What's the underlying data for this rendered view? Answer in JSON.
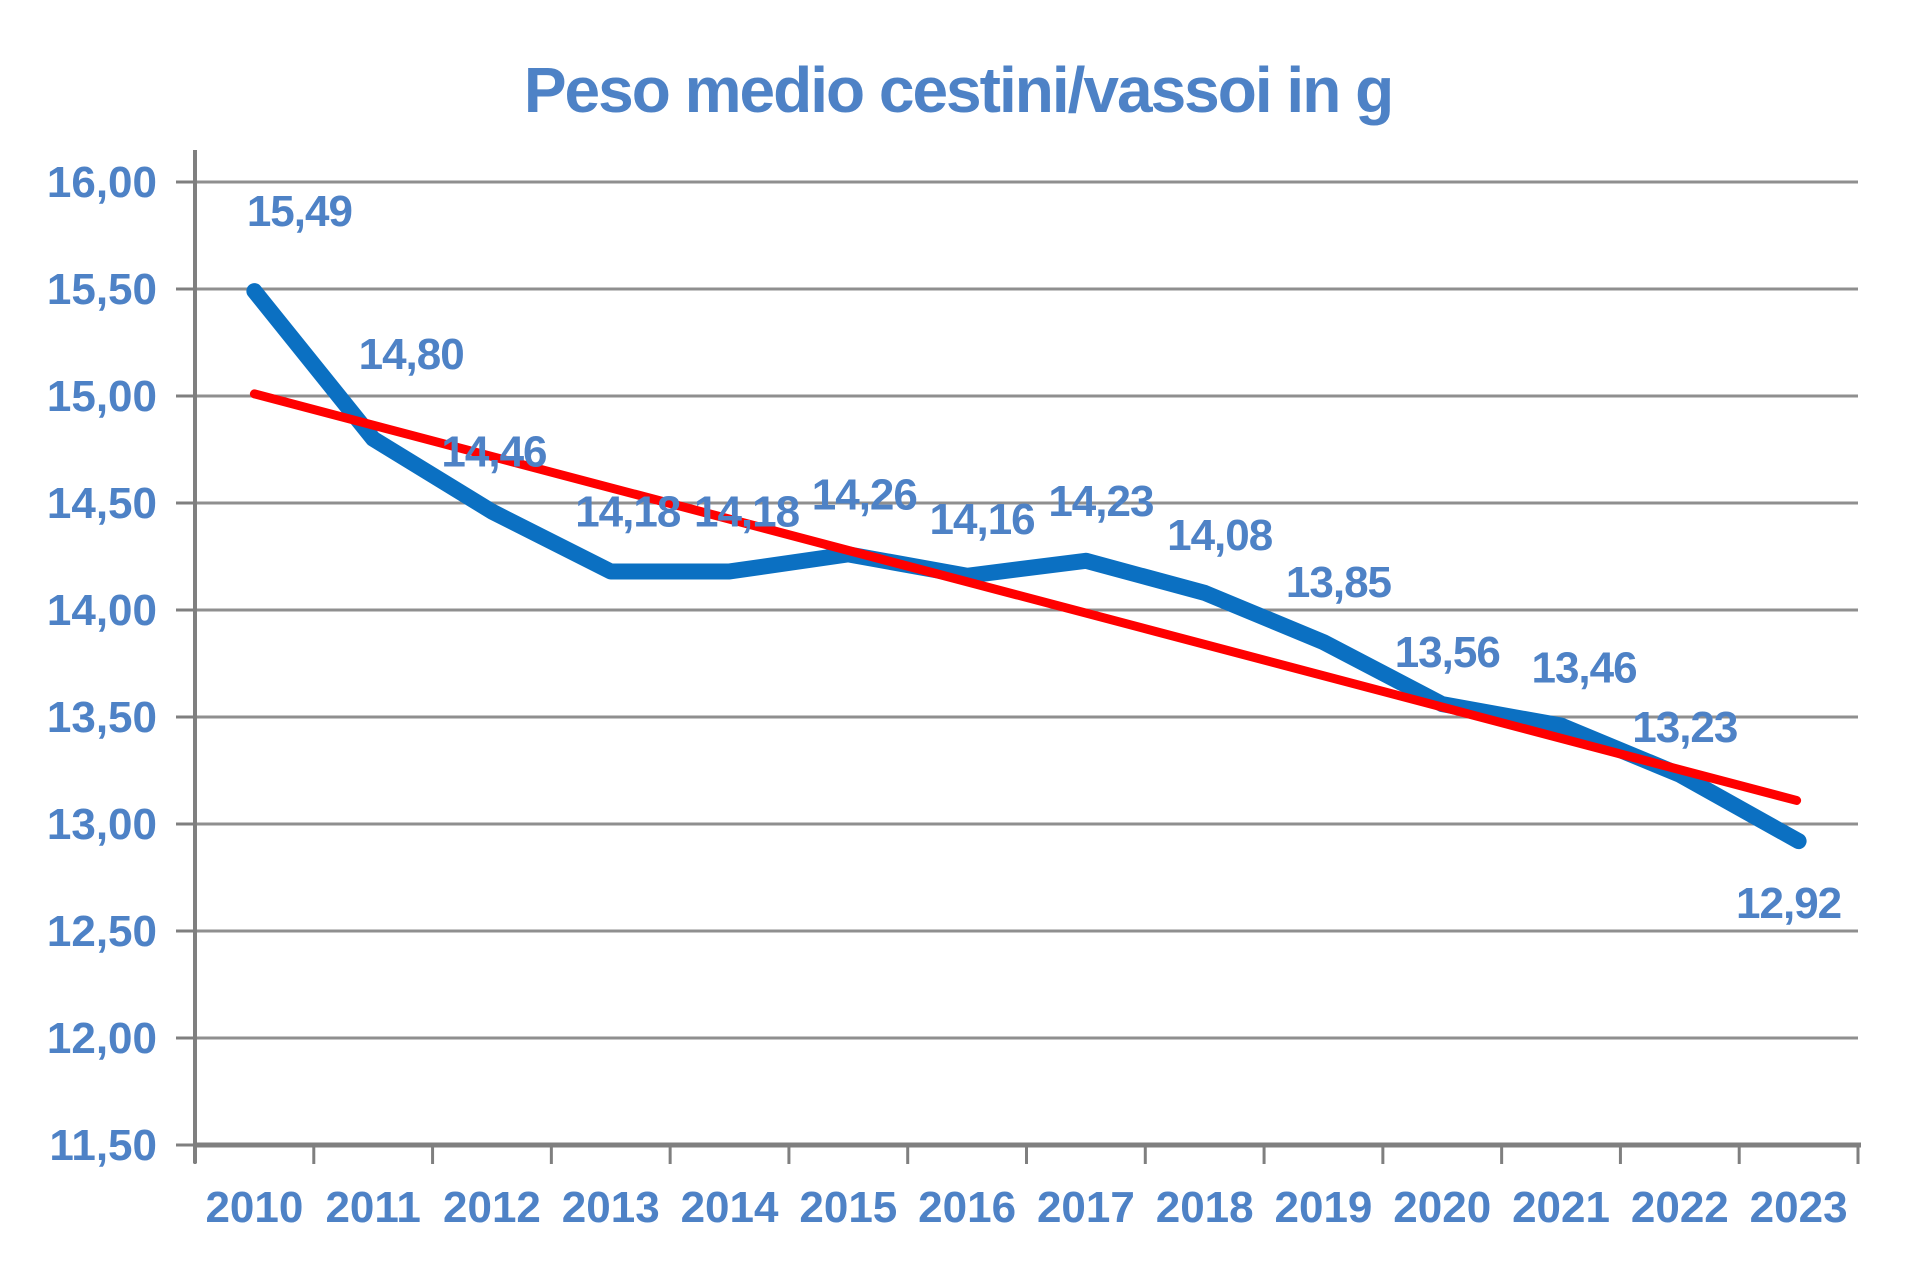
{
  "chart_data": {
    "type": "line",
    "title": "Peso medio cestini/vassoi in g",
    "categories": [
      "2010",
      "2011",
      "2012",
      "2013",
      "2014",
      "2015",
      "2016",
      "2017",
      "2018",
      "2019",
      "2020",
      "2021",
      "2022",
      "2023"
    ],
    "series": [
      {
        "name": "Peso medio cestini/vassoi in g",
        "values": [
          15.49,
          14.8,
          14.46,
          14.18,
          14.18,
          14.26,
          14.16,
          14.23,
          14.08,
          13.85,
          13.56,
          13.46,
          13.23,
          12.92
        ]
      }
    ],
    "data_labels": [
      "15,49",
      "14,80",
      "14,46",
      "14,18",
      "14,18",
      "14,26",
      "14,16",
      "14,23",
      "14,08",
      "13,85",
      "13,56",
      "13,46",
      "13,23",
      "12,92"
    ],
    "y_tick_labels": [
      "16,00",
      "15,50",
      "15,00",
      "14,50",
      "14,00",
      "13,50",
      "13,00",
      "12,50",
      "12,00",
      "11,50"
    ],
    "ylim": [
      11.5,
      16.0
    ],
    "y_step": 0.5,
    "xlabel": "",
    "ylabel": "",
    "grid": true,
    "legend": "none",
    "trendline": {
      "type": "linear",
      "start_value": 15.01,
      "end_value": 13.11
    },
    "colors": {
      "series_line": "#0b70c2",
      "trendline": "#ff0000",
      "label_text": "#4e82c6",
      "title_text": "#4e82c6",
      "gridline": "#8f8f8f",
      "axis_line": "#7f7f7f",
      "background": "#ffffff"
    }
  }
}
